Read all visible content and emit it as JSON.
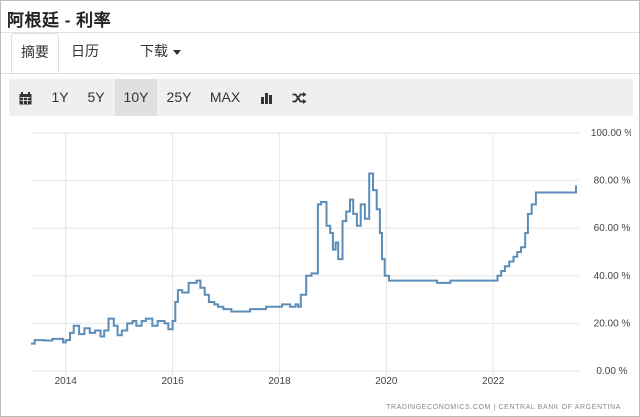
{
  "window": {
    "title": "阿根廷 - 利率"
  },
  "tabs": [
    {
      "label": "摘要",
      "active": true
    },
    {
      "label": "日历",
      "active": false
    },
    {
      "label": "下载",
      "active": false,
      "dropdown": true
    }
  ],
  "toolbar": {
    "calendar_icon": "calendar-icon",
    "ranges": [
      "1Y",
      "5Y",
      "10Y",
      "25Y",
      "MAX"
    ],
    "selected_range": "10Y",
    "bar_chart_icon": "bar-chart-icon",
    "shuffle_icon": "shuffle-icon"
  },
  "colors": {
    "line": "#5b8db8",
    "grid": "#e6e6e6",
    "toolbar_bg": "#efefef"
  },
  "chart_data": {
    "type": "line",
    "ylim": [
      0,
      100
    ],
    "yticks": [
      0,
      20,
      40,
      60,
      80,
      100
    ],
    "ytick_labels": [
      "0.00 %",
      "20.00 %",
      "40.00 %",
      "60.00 %",
      "80.00 %",
      "100.00 %"
    ],
    "xlim": [
      2013.35,
      2023.55
    ],
    "xticks": [
      2014,
      2016,
      2018,
      2020,
      2022
    ],
    "xtick_labels": [
      "2014",
      "2016",
      "2018",
      "2020",
      "2022"
    ],
    "grid": true,
    "step": true,
    "credit": "TRADINGECONOMICS.COM  |  CENTRAL BANK OF ARGENTINA",
    "series": [
      {
        "x": [
          2013.35,
          2013.42,
          2013.6,
          2013.75,
          2013.95,
          2014.0,
          2014.08,
          2014.15,
          2014.25,
          2014.35,
          2014.45,
          2014.55,
          2014.65,
          2014.72,
          2014.8,
          2014.9,
          2014.97,
          2015.05,
          2015.15,
          2015.25,
          2015.32,
          2015.42,
          2015.5,
          2015.62,
          2015.72,
          2015.85,
          2015.92,
          2016.0,
          2016.05,
          2016.1,
          2016.18,
          2016.3,
          2016.45,
          2016.52,
          2016.6,
          2016.68,
          2016.78,
          2016.85,
          2016.95,
          2017.1,
          2017.25,
          2017.45,
          2017.6,
          2017.75,
          2017.95,
          2018.05,
          2018.2,
          2018.3,
          2018.35,
          2018.4,
          2018.5,
          2018.6,
          2018.72,
          2018.78,
          2018.88,
          2018.95,
          2019.0,
          2019.05,
          2019.1,
          2019.18,
          2019.25,
          2019.32,
          2019.38,
          2019.45,
          2019.52,
          2019.6,
          2019.68,
          2019.75,
          2019.82,
          2019.88,
          2019.92,
          2019.97,
          2020.05,
          2020.12,
          2020.22,
          2020.4,
          2020.6,
          2020.8,
          2020.95,
          2021.2,
          2021.5,
          2021.8,
          2022.0,
          2022.08,
          2022.15,
          2022.22,
          2022.3,
          2022.38,
          2022.45,
          2022.52,
          2022.6,
          2022.65,
          2022.72,
          2022.8,
          2023.0,
          2023.2,
          2023.4,
          2023.5,
          2023.55
        ],
        "y": [
          11.5,
          13,
          12.8,
          13.5,
          12,
          13,
          16,
          19,
          15.5,
          18,
          16,
          17,
          14.5,
          17,
          22,
          19,
          15,
          17,
          20,
          21,
          19,
          21,
          22,
          19,
          21,
          20,
          17.5,
          21,
          29,
          34,
          33,
          37,
          38,
          35,
          32,
          29,
          28,
          27,
          26,
          25,
          25,
          26,
          26,
          27,
          27,
          28,
          27,
          28,
          27,
          32,
          40,
          41,
          70,
          71,
          61,
          58,
          51,
          54,
          47,
          63,
          67,
          72,
          66,
          61,
          70,
          64,
          83,
          76,
          68,
          58,
          47,
          40,
          38,
          38,
          38,
          38,
          38,
          38,
          37,
          38,
          38,
          38,
          38,
          40,
          42,
          44,
          46,
          48,
          50,
          52,
          58,
          66,
          70,
          75,
          75,
          75,
          75,
          75,
          78
        ]
      }
    ]
  }
}
